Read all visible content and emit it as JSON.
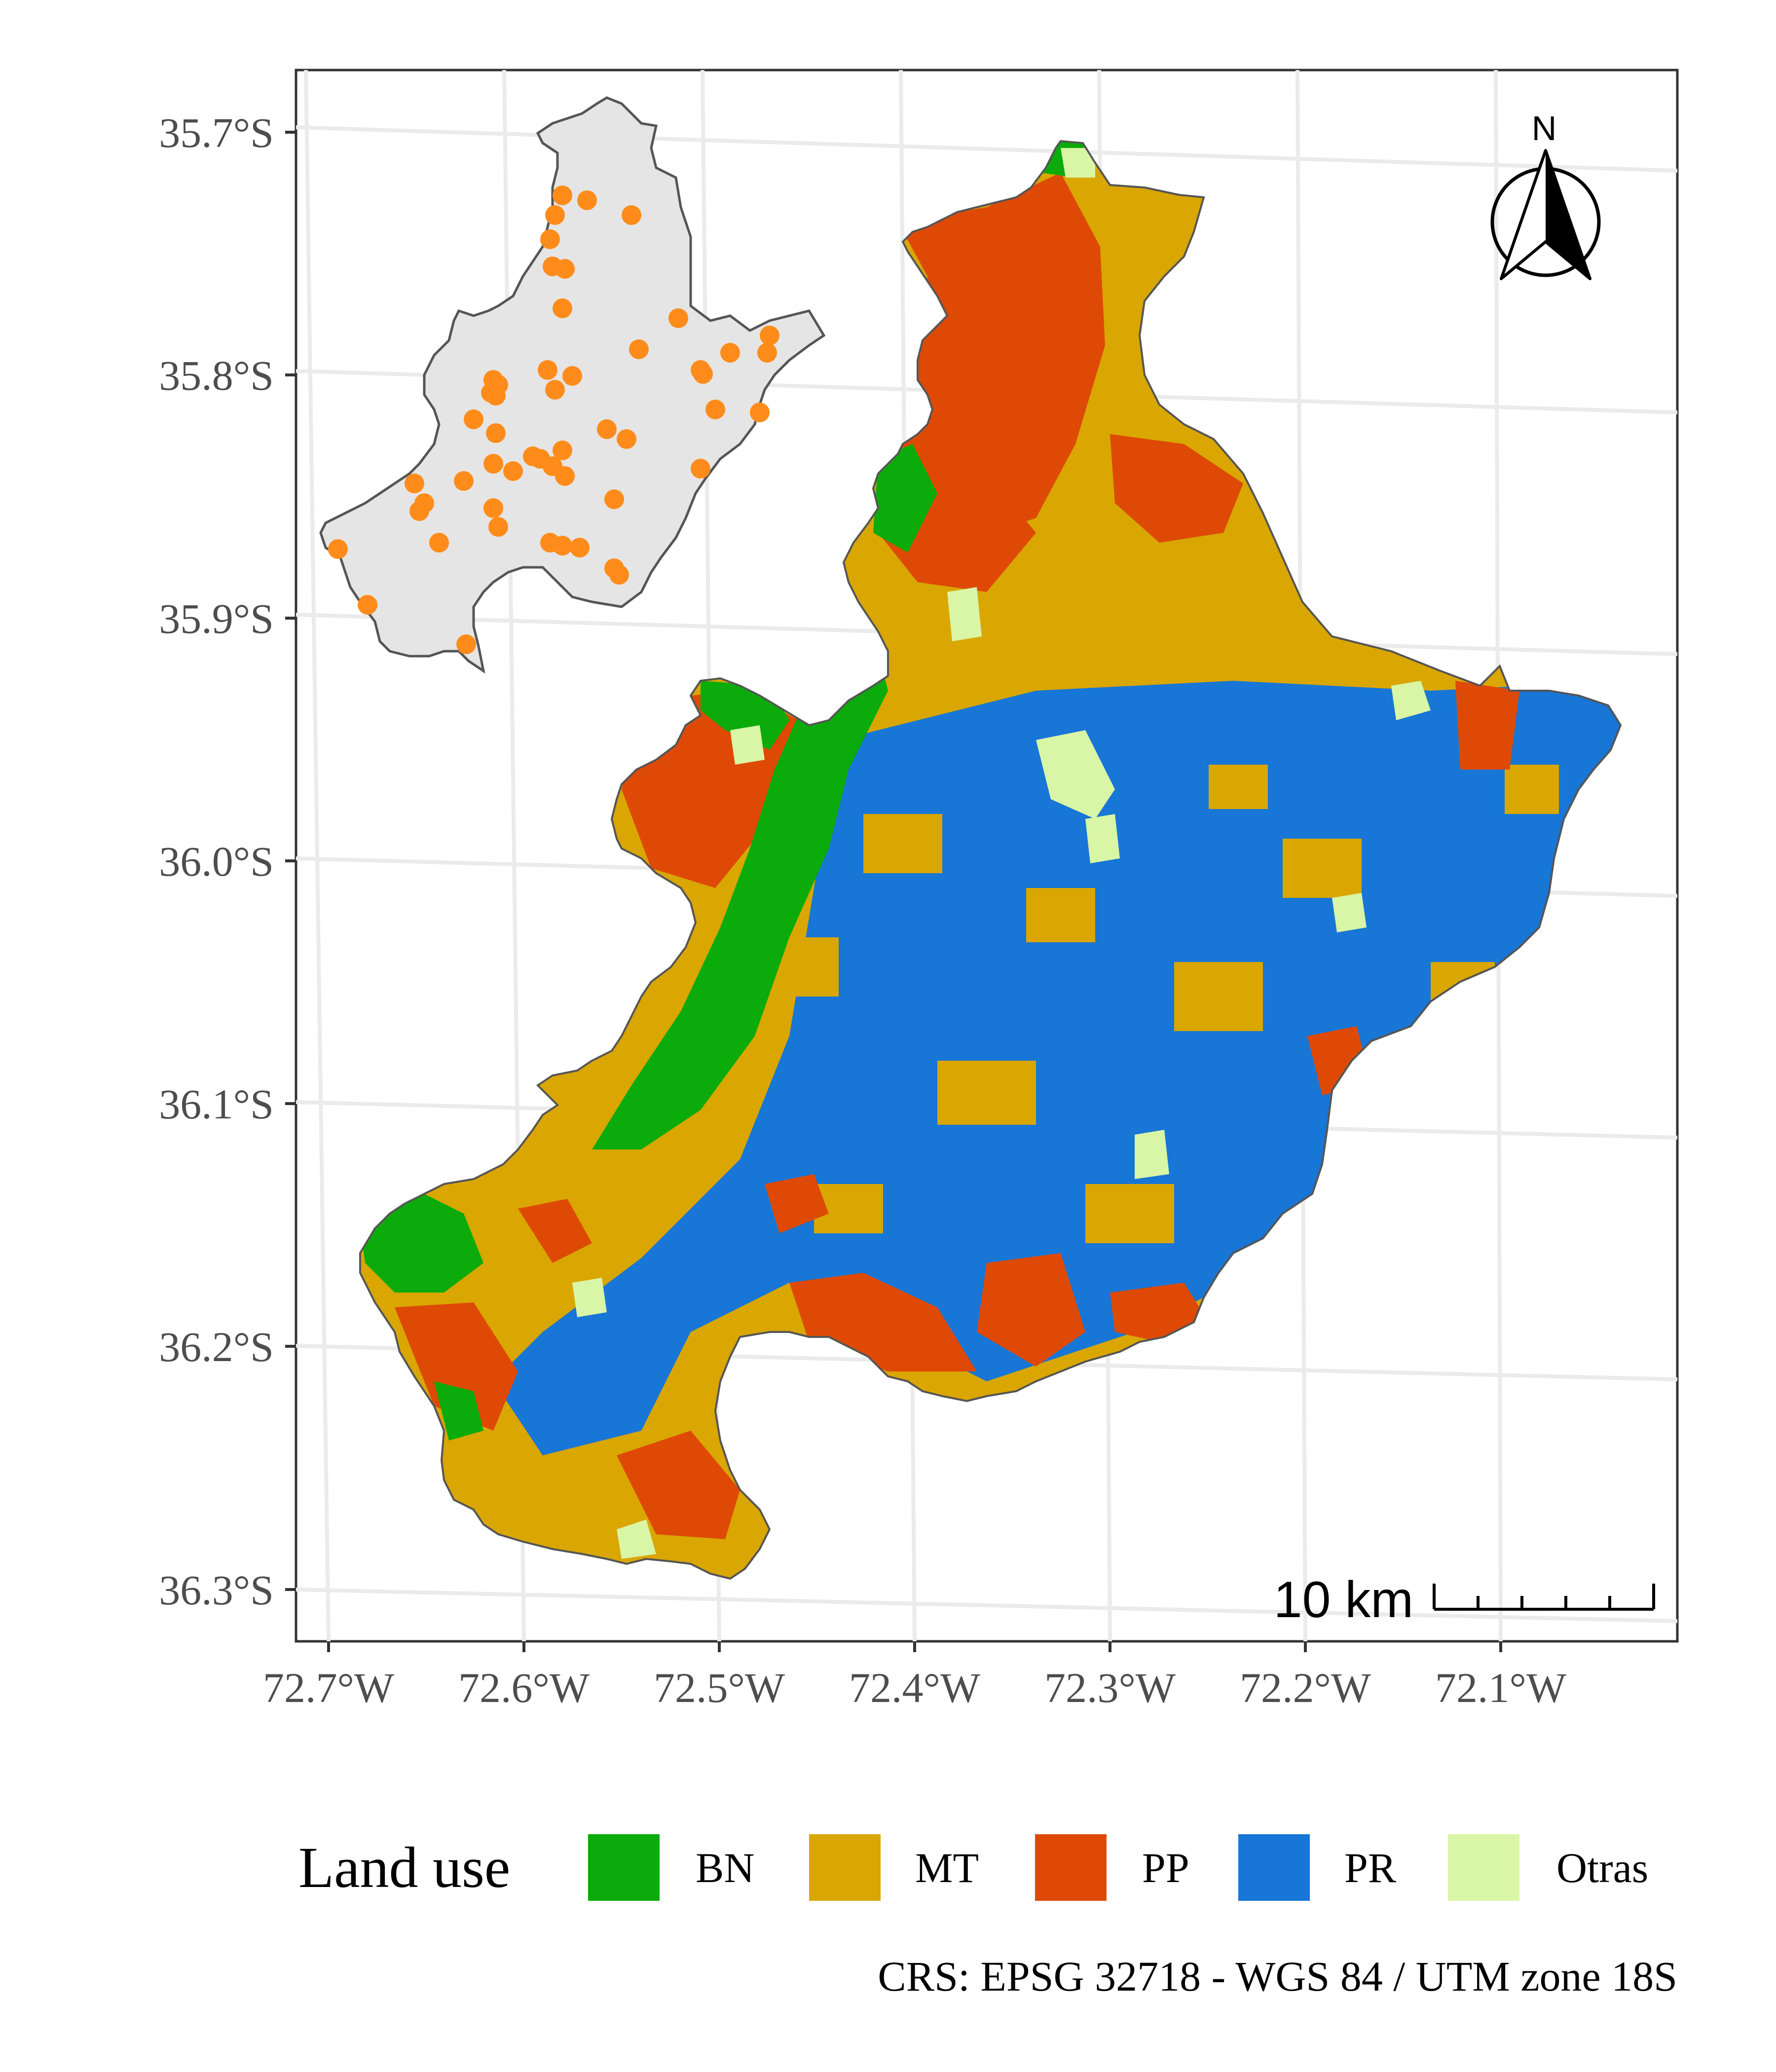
{
  "map": {
    "lat_ticks": [
      "35.7°S",
      "35.8°S",
      "35.9°S",
      "36.0°S",
      "36.1°S",
      "36.2°S",
      "36.3°S"
    ],
    "lon_ticks": [
      "72.7°W",
      "72.6°W",
      "72.5°W",
      "72.4°W",
      "72.3°W",
      "72.2°W",
      "72.1°W"
    ],
    "north_label": "N",
    "scale_bar_label": "10 km",
    "inset_point_color": "#ff8c1a",
    "inset_fill_color": "#e5e5e5"
  },
  "legend": {
    "title": "Land use",
    "items": [
      {
        "label": "BN",
        "color": "#0aab0a"
      },
      {
        "label": "MT",
        "color": "#d9a602"
      },
      {
        "label": "PP",
        "color": "#de4a06"
      },
      {
        "label": "PR",
        "color": "#1776d6"
      },
      {
        "label": "Otras",
        "color": "#d9f5a6"
      }
    ]
  },
  "caption": "CRS: EPSG 32718 - WGS 84 / UTM zone 18S"
}
